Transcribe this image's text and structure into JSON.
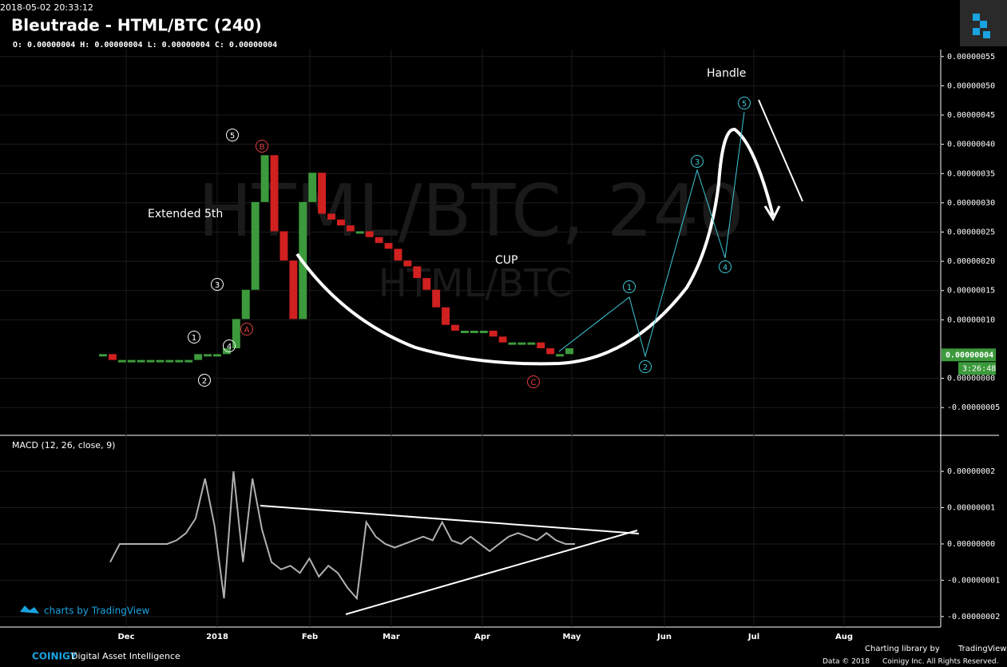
{
  "header": {
    "timestamp": "2018-05-02 20:33:12",
    "title": "Bleutrade - HTML/BTC (240)",
    "ohlc": "O: 0.00000004 H: 0.00000004 L: 0.00000004 C: 0.00000004"
  },
  "chart_data": [
    {
      "type": "candlestick",
      "watermark": "HTML/BTC, 240",
      "watermark_sub": "HTML/BTC",
      "values": [
        4e-08,
        3e-08,
        3e-08,
        3e-08,
        3e-08,
        3e-08,
        3e-08,
        3e-08,
        3e-08,
        3e-08,
        4e-08,
        4e-08,
        4e-08,
        5e-08,
        1e-07,
        1.5e-07,
        3e-07,
        3.8e-07,
        2.5e-07,
        2e-07,
        1e-07,
        3e-07,
        3.5e-07,
        2.8e-07,
        2.7e-07,
        2.6e-07,
        2.5e-07,
        2.5e-07,
        2.4e-07,
        2.3e-07,
        2.2e-07,
        2e-07,
        1.9e-07,
        1.7e-07,
        1.5e-07,
        1.2e-07,
        9e-08,
        8e-08,
        8e-08,
        8e-08,
        8e-08,
        7e-08,
        6e-08,
        6e-08,
        6e-08,
        6e-08,
        5e-08,
        4e-08,
        4e-08,
        5e-08
      ],
      "up_color": "#3c9a3c",
      "down_color": "#d02020",
      "ylim": [
        -9.75e-08,
        5.62e-07
      ],
      "yticks": [
        {
          "value": -5e-08,
          "label": "-0.00000005"
        },
        {
          "value": 0,
          "label": "0.00000000"
        },
        {
          "value": 1e-07,
          "label": "0.00000010"
        },
        {
          "value": 1.5e-07,
          "label": "0.00000015"
        },
        {
          "value": 2e-07,
          "label": "0.00000020"
        },
        {
          "value": 2.5e-07,
          "label": "0.00000025"
        },
        {
          "value": 3e-07,
          "label": "0.00000030"
        },
        {
          "value": 3.5e-07,
          "label": "0.00000035"
        },
        {
          "value": 4e-07,
          "label": "0.00000040"
        },
        {
          "value": 4.5e-07,
          "label": "0.00000045"
        },
        {
          "value": 5e-07,
          "label": "0.00000050"
        },
        {
          "value": 5.5e-07,
          "label": "0.00000055"
        }
      ],
      "last_price": {
        "value": 4e-08,
        "label": "0.00000004"
      },
      "countdown": "3:26:48",
      "annotations": [
        "Extended 5th",
        "CUP",
        "Handle"
      ],
      "waves": [
        "1",
        "2",
        "3",
        "4",
        "5",
        "A",
        "B",
        "C"
      ],
      "projection_waves": [
        "1",
        "2",
        "3",
        "4",
        "5"
      ],
      "x_labels": [
        "Dec",
        "2018",
        "Feb",
        "Mar",
        "Apr",
        "May",
        "Jun",
        "Jul",
        "Aug"
      ]
    },
    {
      "type": "line",
      "title": "MACD (12, 26, close, 9)",
      "color": "#b0b0b0",
      "values": [
        -5e-09,
        0,
        0,
        0,
        0,
        0,
        0,
        1e-09,
        3e-09,
        7e-09,
        1.8e-08,
        5e-09,
        -1.5e-08,
        2e-08,
        -5e-09,
        1.8e-08,
        4e-09,
        -5e-09,
        -7e-09,
        -6e-09,
        -8e-09,
        -4e-09,
        -9e-09,
        -6e-09,
        -8e-09,
        -1.2e-08,
        -1.5e-08,
        6e-09,
        2e-09,
        0,
        -1e-09,
        0,
        1e-09,
        2e-09,
        1e-09,
        6e-09,
        1e-09,
        0,
        2e-09,
        0,
        -2e-09,
        0,
        2e-09,
        3e-09,
        2e-09,
        1e-09,
        3e-09,
        1e-09,
        0,
        0
      ],
      "ylim": [
        -2.29e-08,
        2.97e-08
      ],
      "yticks": [
        {
          "value": -2e-08,
          "label": "-0.00000002"
        },
        {
          "value": -1e-08,
          "label": "-0.00000001"
        },
        {
          "value": 0,
          "label": "0.00000000"
        },
        {
          "value": 1e-08,
          "label": "0.00000001"
        },
        {
          "value": 2e-08,
          "label": "0.00000002"
        }
      ]
    }
  ],
  "footer": {
    "tv_badge": "charts by TradingView",
    "brand": "COINIGY",
    "tagline": "Digital Asset Intelligence",
    "library": "Charting library by",
    "library_name": "TradingView",
    "data_note": "Data © 2018",
    "rights": "Coinigy Inc. All Rights Reserved."
  }
}
